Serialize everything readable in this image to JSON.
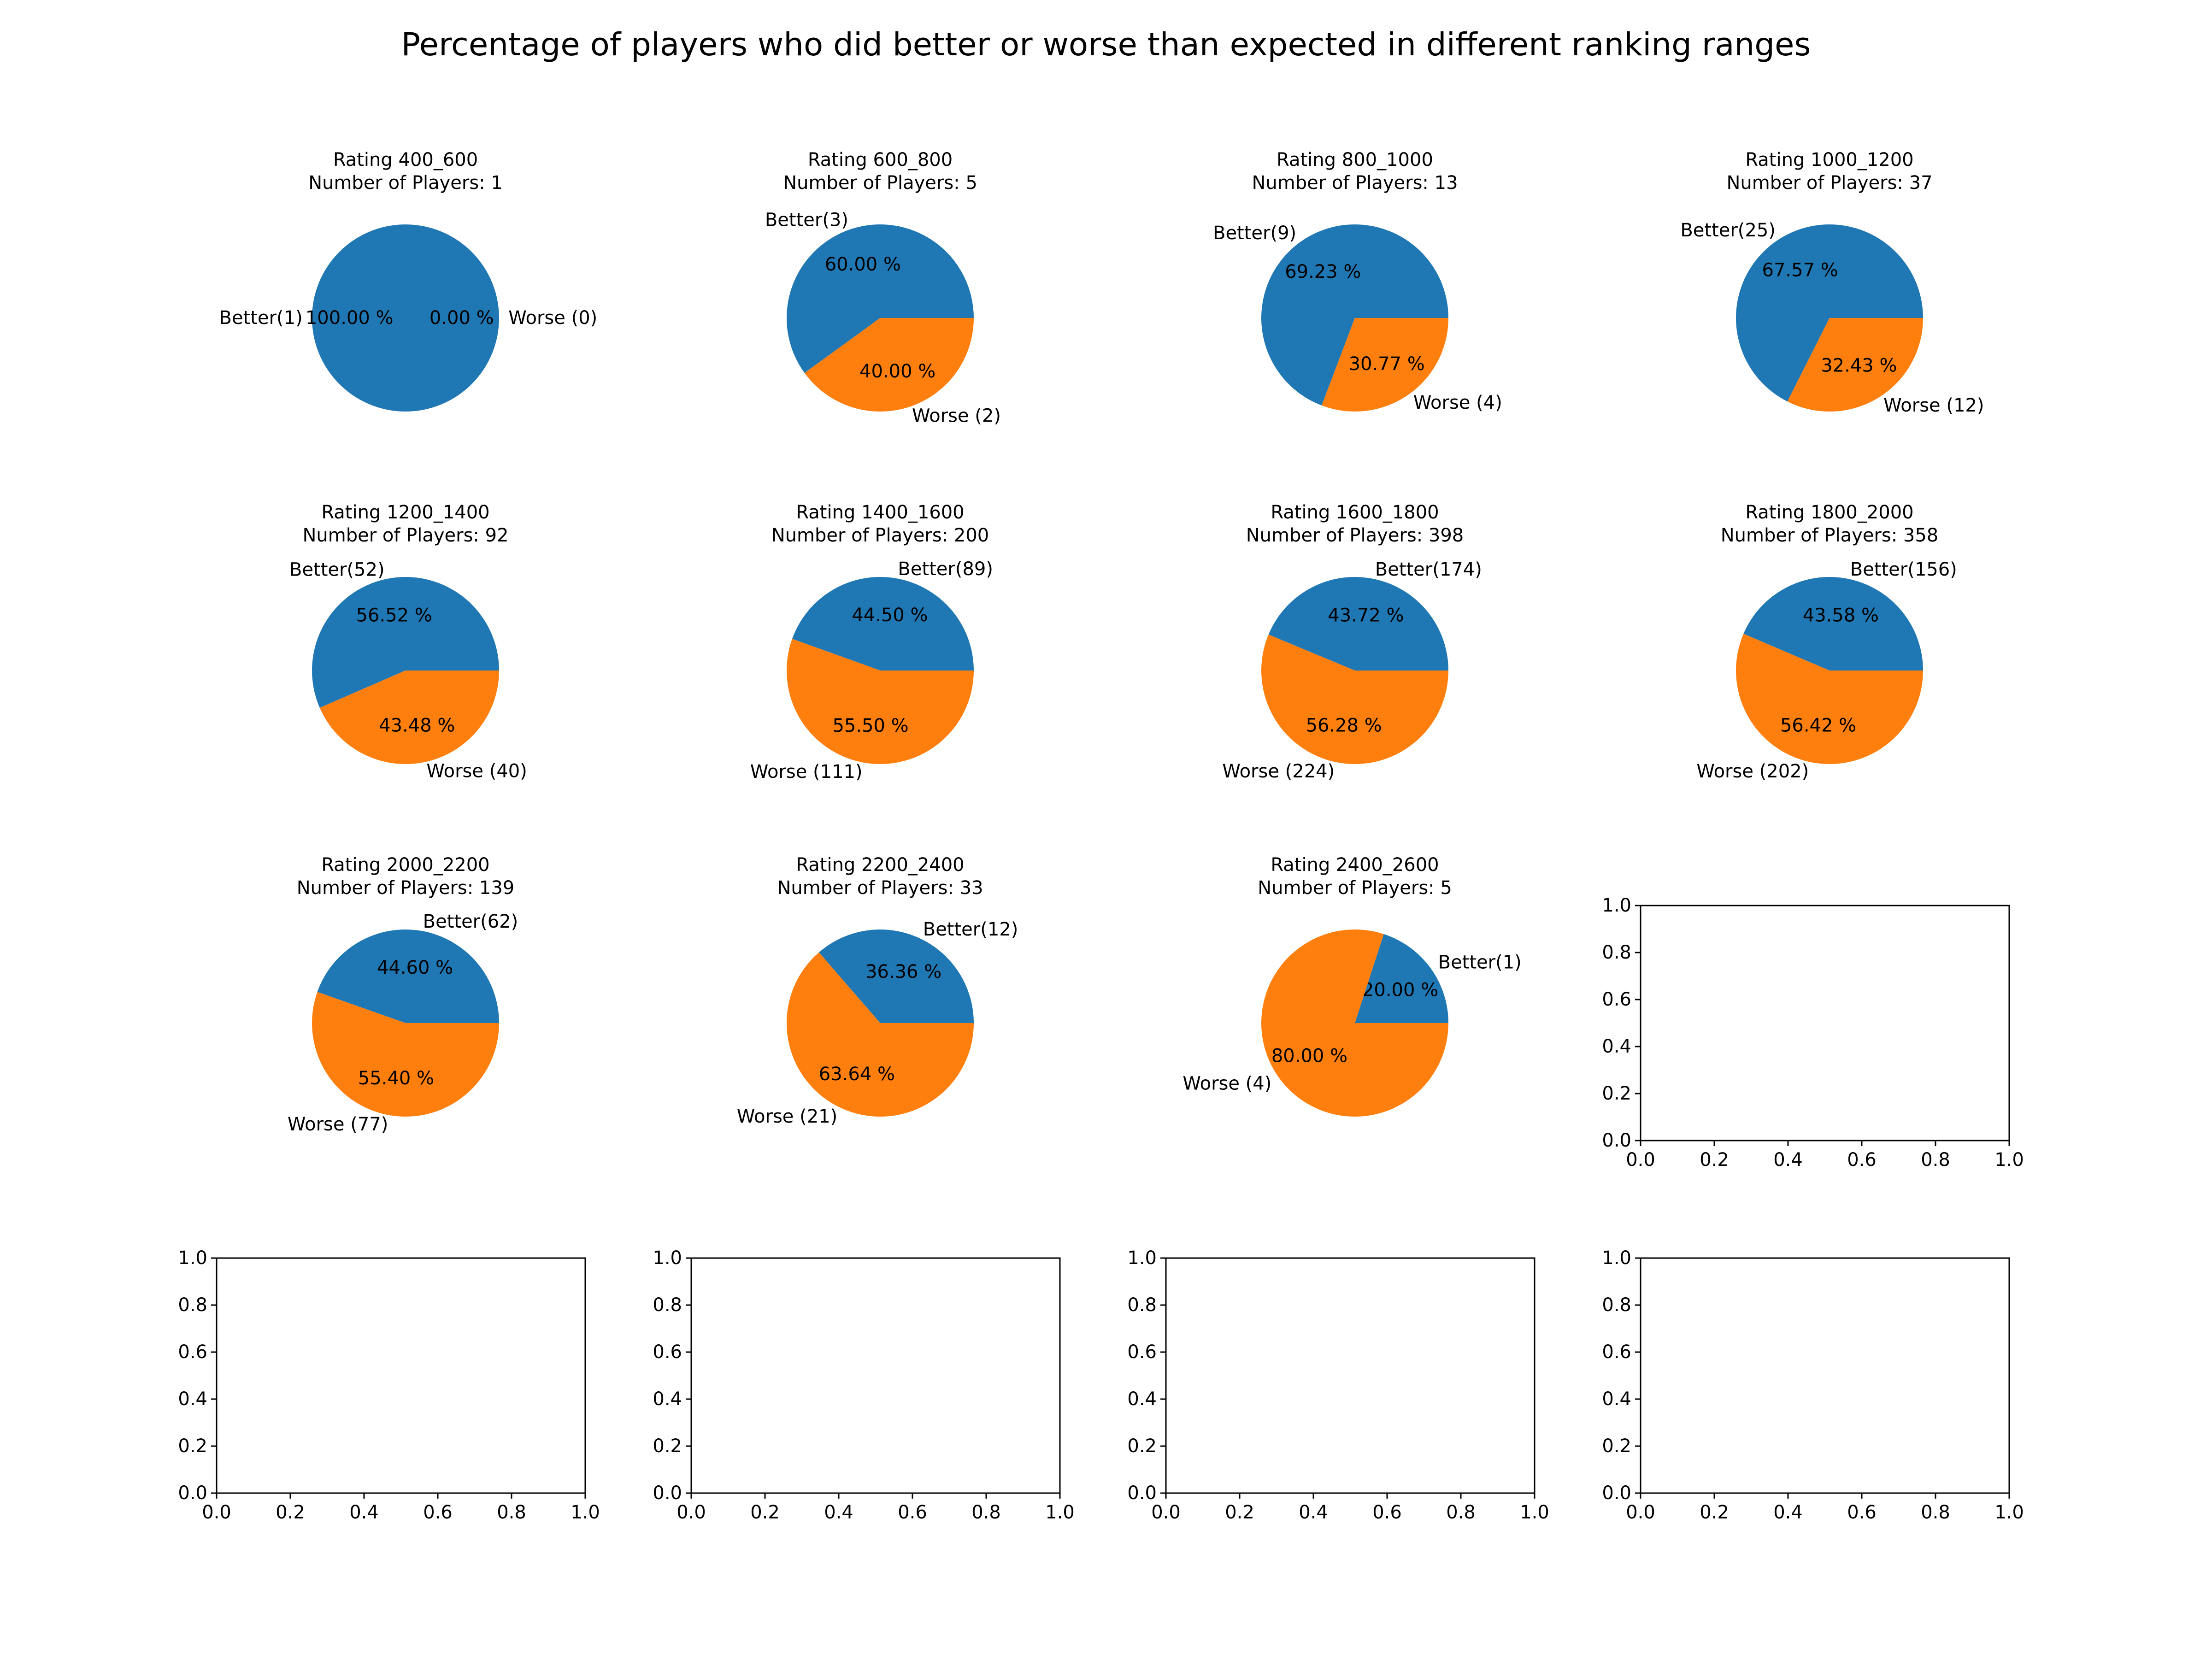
{
  "chart_data": {
    "type": "pie",
    "title": "Percentage of players  who did better or worse than expected in different ranking ranges",
    "colors": {
      "better": "#1f77b4",
      "worse": "#ff7f0e"
    },
    "grid_size": "4x4",
    "charts": [
      {
        "title": "Rating 400_600\nNumber of Players: 1",
        "labels": [
          "Better(1)",
          "Worse (0)"
        ],
        "values": [
          1,
          0
        ],
        "percent_labels": [
          "100.00 %",
          "0.00 %"
        ]
      },
      {
        "title": "Rating 600_800\nNumber of Players: 5",
        "labels": [
          "Better(3)",
          "Worse (2)"
        ],
        "values": [
          3,
          2
        ],
        "percent_labels": [
          "60.00 %",
          "40.00 %"
        ]
      },
      {
        "title": "Rating 800_1000\nNumber of Players: 13",
        "labels": [
          "Better(9)",
          "Worse (4)"
        ],
        "values": [
          9,
          4
        ],
        "percent_labels": [
          "69.23 %",
          "30.77 %"
        ]
      },
      {
        "title": "Rating 1000_1200\nNumber of Players: 37",
        "labels": [
          "Better(25)",
          "Worse (12)"
        ],
        "values": [
          25,
          12
        ],
        "percent_labels": [
          "67.57 %",
          "32.43 %"
        ]
      },
      {
        "title": "Rating 1200_1400\nNumber of Players: 92",
        "labels": [
          "Better(52)",
          "Worse (40)"
        ],
        "values": [
          52,
          40
        ],
        "percent_labels": [
          "56.52 %",
          "43.48 %"
        ]
      },
      {
        "title": "Rating 1400_1600\nNumber of Players: 200",
        "labels": [
          "Better(89)",
          "Worse (111)"
        ],
        "values": [
          89,
          111
        ],
        "percent_labels": [
          "44.50 %",
          "55.50 %"
        ]
      },
      {
        "title": "Rating 1600_1800\nNumber of Players: 398",
        "labels": [
          "Better(174)",
          "Worse (224)"
        ],
        "values": [
          174,
          224
        ],
        "percent_labels": [
          "43.72 %",
          "56.28 %"
        ]
      },
      {
        "title": "Rating 1800_2000\nNumber of Players: 358",
        "labels": [
          "Better(156)",
          "Worse (202)"
        ],
        "values": [
          156,
          202
        ],
        "percent_labels": [
          "43.58 %",
          "56.42 %"
        ]
      },
      {
        "title": "Rating 2000_2200\nNumber of Players: 139",
        "labels": [
          "Better(62)",
          "Worse (77)"
        ],
        "values": [
          62,
          77
        ],
        "percent_labels": [
          "44.60 %",
          "55.40 %"
        ]
      },
      {
        "title": "Rating 2200_2400\nNumber of Players: 33",
        "labels": [
          "Better(12)",
          "Worse (21)"
        ],
        "values": [
          12,
          21
        ],
        "percent_labels": [
          "36.36 %",
          "63.64 %"
        ]
      },
      {
        "title": "Rating 2400_2600\nNumber of Players: 5",
        "labels": [
          "Better(1)",
          "Worse (4)"
        ],
        "values": [
          1,
          4
        ],
        "percent_labels": [
          "20.00 %",
          "80.00 %"
        ]
      }
    ],
    "empty_axes": {
      "count": 5,
      "xlim": [
        0,
        1
      ],
      "ylim": [
        0,
        1
      ],
      "xticks": [
        "0.0",
        "0.2",
        "0.4",
        "0.6",
        "0.8",
        "1.0"
      ],
      "yticks": [
        "0.0",
        "0.2",
        "0.4",
        "0.6",
        "0.8",
        "1.0"
      ]
    }
  }
}
